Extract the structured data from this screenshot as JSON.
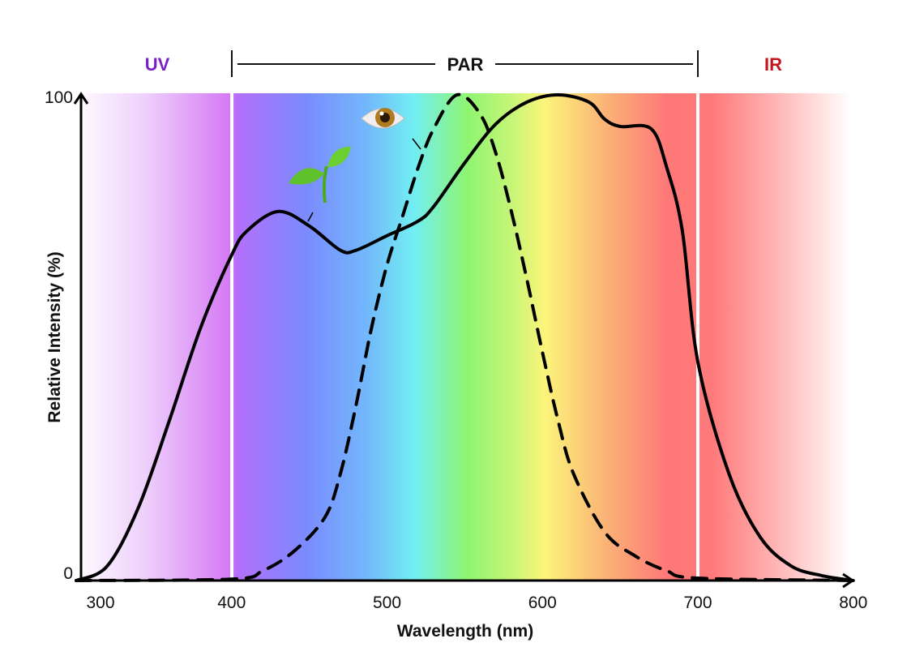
{
  "chart_data": {
    "type": "line",
    "title": "",
    "xlabel": "Wavelength (nm)",
    "ylabel": "Relative Intensity (%)",
    "xlim": [
      300,
      800
    ],
    "ylim": [
      0,
      100
    ],
    "x_ticks": [
      "300",
      "400",
      "500",
      "600",
      "700",
      "800"
    ],
    "y_ticks": [
      "0",
      "100"
    ],
    "grid": false,
    "background": "visible-spectrum gradient",
    "regions": [
      {
        "label": "UV",
        "range": [
          300,
          400
        ],
        "color": "#7b1fc9"
      },
      {
        "label": "PAR",
        "range": [
          400,
          700
        ],
        "color": "#111111"
      },
      {
        "label": "IR",
        "range": [
          700,
          800
        ],
        "color": "#c4161c"
      }
    ],
    "series": [
      {
        "icon": "plant-sprout-icon",
        "style": "solid",
        "x": [
          300,
          320,
          340,
          360,
          380,
          400,
          410,
          430,
          450,
          470,
          480,
          500,
          520,
          530,
          550,
          570,
          590,
          610,
          630,
          640,
          650,
          670,
          680,
          690,
          700,
          720,
          740,
          760,
          780,
          800
        ],
        "y": [
          0,
          3,
          15,
          33,
          52,
          67,
          72,
          76,
          73,
          68,
          68,
          71,
          74,
          77,
          86,
          94,
          98.5,
          100,
          98.5,
          95,
          93.5,
          93,
          85,
          72,
          45,
          22,
          9,
          3,
          1,
          0
        ]
      },
      {
        "icon": "eye-icon",
        "style": "dashed",
        "x": [
          300,
          400,
          420,
          440,
          460,
          470,
          480,
          490,
          500,
          510,
          520,
          530,
          545,
          560,
          570,
          580,
          590,
          600,
          610,
          620,
          640,
          660,
          680,
          700,
          800
        ],
        "y": [
          0,
          0.3,
          2,
          6,
          13,
          22,
          36,
          52,
          65,
          75,
          85,
          93,
          100,
          96,
          88,
          76,
          62,
          47,
          33,
          22,
          10,
          5,
          2,
          0.5,
          0
        ]
      }
    ]
  }
}
